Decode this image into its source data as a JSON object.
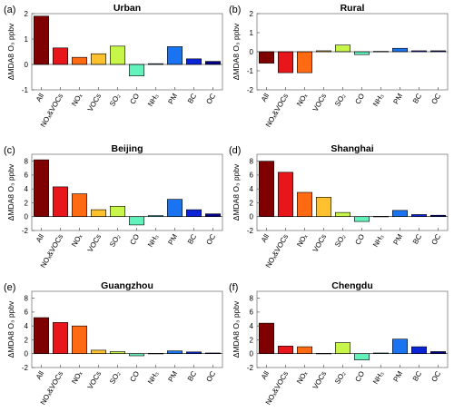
{
  "colors": [
    "#7f0000",
    "#e8151b",
    "#ff6a13",
    "#ffc12e",
    "#c8f54a",
    "#62f2bc",
    "#35c7ed",
    "#1a73f0",
    "#0a24d6",
    "#00008a"
  ],
  "chart_data": [
    {
      "type": "bar",
      "panel_label": "(a)",
      "title": "Urban",
      "ylabel": "ΔMDA8 O₃ ppbv",
      "categories": [
        "All",
        "NOₓ&VOCs",
        "NOₓ",
        "VOCs",
        "SO₂",
        "CO",
        "NH₃",
        "PM",
        "BC",
        "OC"
      ],
      "values": [
        1.9,
        0.65,
        0.28,
        0.42,
        0.72,
        -0.45,
        0.03,
        0.7,
        0.22,
        0.12
      ],
      "ylim": [
        -1,
        2
      ],
      "yticks": [
        -1,
        0,
        1,
        2
      ]
    },
    {
      "type": "bar",
      "panel_label": "(b)",
      "title": "Rural",
      "ylabel": "ΔMDA8 O₃ ppbv",
      "categories": [
        "All",
        "NOₓ&VOCs",
        "NOₓ",
        "VOCs",
        "SO₂",
        "CO",
        "NH₃",
        "PM",
        "BC",
        "OC"
      ],
      "values": [
        -0.6,
        -1.1,
        -1.1,
        0.05,
        0.35,
        -0.15,
        0.02,
        0.18,
        0.05,
        0.05
      ],
      "ylim": [
        -2,
        2
      ],
      "yticks": [
        -2,
        -1,
        0,
        1,
        2
      ]
    },
    {
      "type": "bar",
      "panel_label": "(c)",
      "title": "Beijing",
      "ylabel": "ΔMDA8 O₃ ppbv",
      "categories": [
        "All",
        "NOₓ&VOCs",
        "NOₓ",
        "VOCs",
        "SO₂",
        "CO",
        "NH₃",
        "PM",
        "BC",
        "OC"
      ],
      "values": [
        8.2,
        4.3,
        3.3,
        1.0,
        1.5,
        -1.2,
        0.15,
        2.5,
        1.0,
        0.4
      ],
      "ylim": [
        -2,
        9
      ],
      "yticks": [
        -2,
        0,
        2,
        4,
        6,
        8
      ]
    },
    {
      "type": "bar",
      "panel_label": "(d)",
      "title": "Shanghai",
      "ylabel": "ΔMDA8 O₃ ppbv",
      "categories": [
        "All",
        "NOₓ&VOCs",
        "NOₓ",
        "VOCs",
        "SO₂",
        "CO",
        "NH₃",
        "PM",
        "BC",
        "OC"
      ],
      "values": [
        8.0,
        6.4,
        3.5,
        2.8,
        0.6,
        -0.7,
        0.05,
        0.9,
        0.3,
        0.2
      ],
      "ylim": [
        -2,
        9
      ],
      "yticks": [
        -2,
        0,
        2,
        4,
        6,
        8
      ]
    },
    {
      "type": "bar",
      "panel_label": "(e)",
      "title": "Guangzhou",
      "ylabel": "ΔMDA8 O₃ ppbv",
      "categories": [
        "All",
        "NOₓ&VOCs",
        "NOₓ",
        "VOCs",
        "SO₂",
        "CO",
        "NH₃",
        "PM",
        "BC",
        "OC"
      ],
      "values": [
        5.2,
        4.5,
        4.0,
        0.5,
        0.3,
        -0.3,
        0.05,
        0.4,
        0.25,
        0.1
      ],
      "ylim": [
        -2,
        9
      ],
      "yticks": [
        -2,
        0,
        2,
        4,
        6,
        8
      ]
    },
    {
      "type": "bar",
      "panel_label": "(f)",
      "title": "Chengdu",
      "ylabel": "ΔMDA8 O₃ ppbv",
      "categories": [
        "All",
        "NOₓ&VOCs",
        "NOₓ",
        "VOCs",
        "SO₂",
        "CO",
        "NH₃",
        "PM",
        "BC",
        "OC"
      ],
      "values": [
        4.4,
        1.1,
        1.0,
        0.05,
        1.6,
        -0.9,
        0.1,
        2.1,
        1.0,
        0.3
      ],
      "ylim": [
        -2,
        9
      ],
      "yticks": [
        -2,
        0,
        2,
        4,
        6,
        8
      ]
    }
  ]
}
